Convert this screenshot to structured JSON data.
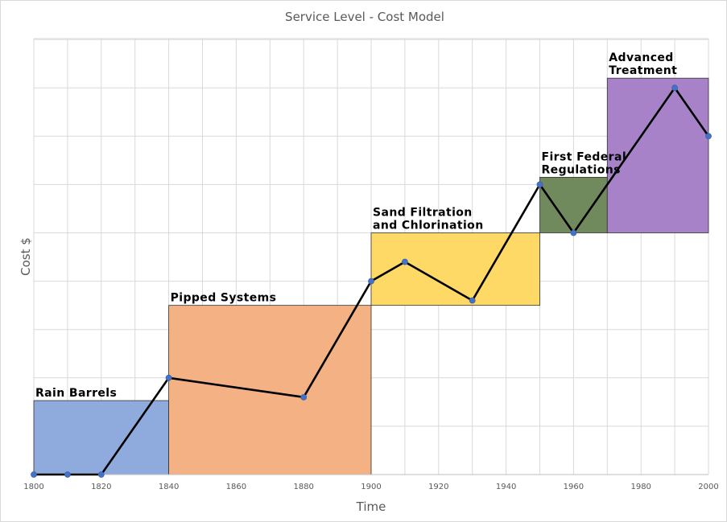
{
  "chart_data": {
    "type": "line",
    "title": "Service Level - Cost Model",
    "xlabel": "Time",
    "ylabel": "Cost $",
    "xlim": [
      1800,
      2000
    ],
    "ylim": [
      0,
      9
    ],
    "x_ticks": [
      1800,
      1820,
      1840,
      1860,
      1880,
      1900,
      1920,
      1940,
      1960,
      1980,
      2000
    ],
    "x_tick_labels": [
      "1800",
      "1820",
      "1840",
      "1860",
      "1880",
      "1900",
      "1920",
      "1940",
      "1960",
      "1980",
      "2000"
    ],
    "x_minor_step": 10,
    "y_grid_step": 1,
    "grid": true,
    "series": [
      {
        "x": [
          1800,
          1810,
          1820,
          1840,
          1880,
          1900,
          1910,
          1930,
          1950,
          1960,
          1990,
          2000
        ],
        "y": [
          0,
          0,
          0,
          2.0,
          1.6,
          4.0,
          4.4,
          3.6,
          6.0,
          5.0,
          8.0,
          7.0
        ]
      }
    ],
    "eras": [
      {
        "label_lines": [
          "Rain Barrels"
        ],
        "x0": 1800,
        "x1": 1840,
        "y0": 0,
        "y1": 1.53,
        "color": "#8faadc"
      },
      {
        "label_lines": [
          "Pipped Systems"
        ],
        "x0": 1840,
        "x1": 1900,
        "y0": 0,
        "y1": 3.5,
        "color": "#f4b183"
      },
      {
        "label_lines": [
          "Sand Filtration",
          "and Chlorination"
        ],
        "x0": 1900,
        "x1": 1950,
        "y0": 3.5,
        "y1": 5.0,
        "color": "#ffd966"
      },
      {
        "label_lines": [
          "First Federal",
          "Regulations"
        ],
        "x0": 1950,
        "x1": 1970,
        "y0": 5.0,
        "y1": 6.15,
        "color": "#70895d"
      },
      {
        "label_lines": [
          "Advanced",
          "Treatment"
        ],
        "x0": 1970,
        "x1": 2000,
        "y0": 5.0,
        "y1": 8.2,
        "color": "#a782c8"
      }
    ],
    "colors": {
      "line": "#000000",
      "marker": "#4472c4",
      "grid": "#d9d9d9",
      "text": "#595959"
    }
  }
}
